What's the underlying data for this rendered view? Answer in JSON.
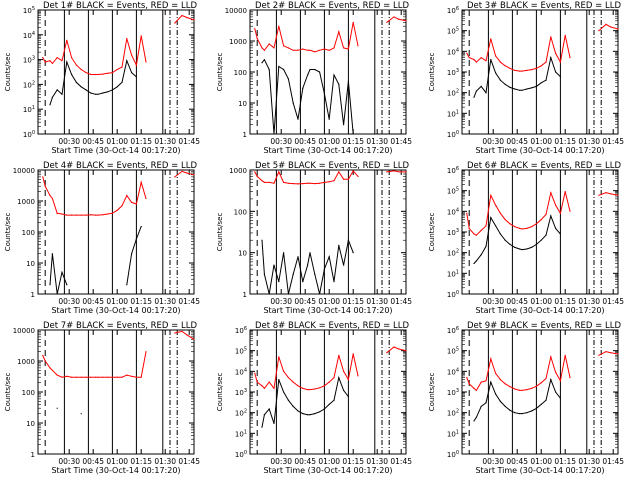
{
  "xlabel": "Start Time (30-Oct-14 00:17:20)",
  "ylabel": "Counts/sec",
  "x_ticks": [
    "00:30",
    "00:45",
    "01:00",
    "01:15",
    "01:30",
    "01:45"
  ],
  "colors": {
    "events": "#000000",
    "lld": "#ff0000"
  },
  "chart_data": [
    {
      "type": "line",
      "title": "Det 1# BLACK = Events, RED = LLD",
      "ylog": true,
      "ylim": [
        1,
        100000
      ],
      "yticks": [
        "10^0",
        "10^1",
        "10^2",
        "10^3",
        "10^4",
        "10^5"
      ],
      "x": [
        0,
        1,
        2,
        3,
        5,
        6,
        8,
        10,
        12,
        14,
        16,
        18,
        20,
        22,
        24,
        25,
        27,
        29,
        31,
        33,
        35,
        37,
        39,
        41,
        43,
        45,
        47,
        49,
        51,
        53,
        55,
        57,
        60,
        62,
        65
      ],
      "series": [
        {
          "name": "Events",
          "values": [
            null,
            null,
            null,
            null,
            15,
            30,
            60,
            40,
            800,
            250,
            120,
            80,
            60,
            45,
            40,
            40,
            45,
            50,
            60,
            80,
            120,
            900,
            300,
            200,
            null,
            null,
            null,
            null,
            null,
            null,
            null,
            null,
            null,
            null,
            null
          ]
        },
        {
          "name": "LLD",
          "values": [
            null,
            null,
            1200,
            800,
            900,
            700,
            1200,
            900,
            6000,
            1200,
            600,
            400,
            300,
            250,
            250,
            250,
            260,
            280,
            300,
            400,
            500,
            7000,
            1500,
            600,
            9000,
            800,
            null,
            null,
            null,
            null,
            null,
            30000,
            60000,
            50000,
            40000
          ]
        }
      ]
    },
    {
      "type": "line",
      "title": "Det 2# BLACK = Events, RED = LLD",
      "ylog": true,
      "ylim": [
        1,
        10000
      ],
      "yticks": [
        "1",
        "10",
        "100",
        "1000",
        "10000"
      ],
      "x": [
        0,
        1,
        2,
        3,
        5,
        6,
        8,
        10,
        12,
        14,
        16,
        18,
        20,
        22,
        24,
        25,
        27,
        29,
        31,
        33,
        35,
        37,
        39,
        41,
        43,
        45,
        47,
        49,
        51,
        53,
        55,
        57,
        60,
        62,
        65
      ],
      "series": [
        {
          "name": "Events",
          "values": [
            null,
            null,
            null,
            null,
            200,
            250,
            120,
            1,
            150,
            120,
            60,
            10,
            3,
            30,
            80,
            120,
            120,
            100,
            20,
            3,
            80,
            40,
            2,
            50,
            1,
            null,
            null,
            null,
            null,
            null,
            null,
            null,
            null,
            null,
            null
          ]
        },
        {
          "name": "LLD",
          "values": [
            null,
            null,
            2500,
            1200,
            600,
            500,
            800,
            600,
            3000,
            700,
            600,
            500,
            500,
            550,
            500,
            500,
            450,
            500,
            550,
            500,
            600,
            2000,
            600,
            550,
            4000,
            700,
            null,
            null,
            null,
            null,
            null,
            4000,
            6000,
            5000,
            4500
          ]
        }
      ]
    },
    {
      "type": "line",
      "title": "Det 3# BLACK = Events, RED = LLD",
      "ylog": true,
      "ylim": [
        1,
        1000000
      ],
      "yticks": [
        "10^0",
        "10^1",
        "10^2",
        "10^3",
        "10^4",
        "10^5",
        "10^6"
      ],
      "x": [
        0,
        1,
        2,
        3,
        5,
        6,
        8,
        10,
        12,
        14,
        16,
        18,
        20,
        22,
        24,
        25,
        27,
        29,
        31,
        33,
        35,
        37,
        39,
        41,
        43,
        45,
        47,
        49,
        51,
        53,
        55,
        57,
        60,
        62,
        65
      ],
      "series": [
        {
          "name": "Events",
          "values": [
            null,
            null,
            null,
            null,
            60,
            120,
            200,
            100,
            4000,
            900,
            400,
            250,
            180,
            150,
            130,
            130,
            150,
            170,
            200,
            300,
            400,
            5000,
            1000,
            600,
            null,
            null,
            null,
            null,
            null,
            null,
            null,
            null,
            null,
            null,
            null
          ]
        },
        {
          "name": "LLD",
          "values": [
            null,
            null,
            8000,
            5000,
            4000,
            3000,
            5000,
            3500,
            40000,
            6000,
            3000,
            2000,
            1500,
            1200,
            1100,
            1100,
            1200,
            1300,
            1500,
            2000,
            3000,
            50000,
            8000,
            3000,
            60000,
            5000,
            null,
            null,
            null,
            null,
            null,
            100000,
            200000,
            150000,
            120000
          ]
        }
      ]
    },
    {
      "type": "line",
      "title": "Det 4# BLACK = Events, RED = LLD",
      "ylog": true,
      "ylim": [
        1,
        10000
      ],
      "yticks": [
        "1",
        "10",
        "100",
        "1000",
        "10000"
      ],
      "x": [
        0,
        1,
        2,
        3,
        5,
        6,
        8,
        10,
        12,
        14,
        16,
        18,
        20,
        22,
        24,
        25,
        27,
        29,
        31,
        33,
        35,
        37,
        39,
        41,
        43,
        45,
        47,
        49,
        51,
        53,
        55,
        57,
        60,
        62,
        65
      ],
      "series": [
        {
          "name": "Events",
          "values": [
            null,
            null,
            null,
            null,
            2,
            20,
            1,
            5,
            2,
            null,
            null,
            null,
            null,
            null,
            null,
            null,
            null,
            null,
            null,
            null,
            null,
            2,
            20,
            60,
            150,
            null,
            null,
            null,
            null,
            null,
            null,
            null,
            null,
            null,
            null
          ]
        },
        {
          "name": "LLD",
          "values": [
            null,
            null,
            6000,
            3000,
            1500,
            1200,
            400,
            380,
            350,
            350,
            350,
            350,
            350,
            360,
            350,
            350,
            360,
            380,
            400,
            500,
            700,
            1500,
            900,
            800,
            4000,
            1200,
            null,
            null,
            null,
            null,
            null,
            6000,
            9000,
            8000,
            7000
          ]
        }
      ]
    },
    {
      "type": "line",
      "title": "Det 5# BLACK = Events, RED = LLD",
      "ylog": true,
      "ylim": [
        1,
        1000
      ],
      "yticks": [
        "1",
        "10",
        "100",
        "1000"
      ],
      "x": [
        0,
        1,
        2,
        3,
        5,
        6,
        8,
        10,
        12,
        14,
        16,
        18,
        20,
        22,
        24,
        25,
        27,
        29,
        31,
        33,
        35,
        37,
        39,
        41,
        43,
        45,
        47,
        49,
        51,
        53,
        55,
        57,
        60,
        62,
        65
      ],
      "series": [
        {
          "name": "Events",
          "values": [
            null,
            null,
            null,
            null,
            20,
            3,
            1,
            5,
            2,
            10,
            1,
            3,
            8,
            2,
            5,
            10,
            3,
            1,
            4,
            8,
            2,
            15,
            5,
            20,
            10,
            null,
            null,
            null,
            null,
            null,
            null,
            null,
            null,
            null,
            null
          ]
        },
        {
          "name": "LLD",
          "values": [
            null,
            null,
            900,
            700,
            550,
            500,
            500,
            480,
            900,
            500,
            480,
            470,
            460,
            470,
            480,
            480,
            470,
            480,
            500,
            520,
            550,
            900,
            600,
            600,
            950,
            700,
            null,
            null,
            null,
            null,
            null,
            900,
            950,
            900,
            900
          ]
        }
      ]
    },
    {
      "type": "line",
      "title": "Det 6# BLACK = Events, RED = LLD",
      "ylog": true,
      "ylim": [
        1,
        1000000
      ],
      "yticks": [
        "10^0",
        "10^1",
        "10^2",
        "10^3",
        "10^4",
        "10^5",
        "10^6"
      ],
      "x": [
        0,
        1,
        2,
        3,
        5,
        6,
        8,
        10,
        12,
        14,
        16,
        18,
        20,
        22,
        24,
        25,
        27,
        29,
        31,
        33,
        35,
        37,
        39,
        41,
        43,
        45,
        47,
        49,
        51,
        53,
        55,
        57,
        60,
        62,
        65
      ],
      "series": [
        {
          "name": "Events",
          "values": [
            null,
            null,
            null,
            null,
            30,
            40,
            80,
            200,
            5000,
            2000,
            800,
            400,
            250,
            180,
            150,
            140,
            150,
            180,
            250,
            400,
            700,
            6000,
            1500,
            800,
            null,
            null,
            null,
            null,
            null,
            null,
            null,
            null,
            null,
            null,
            null
          ]
        },
        {
          "name": "LLD",
          "values": [
            null,
            null,
            8000,
            1500,
            800,
            700,
            1200,
            2000,
            60000,
            20000,
            8000,
            4000,
            2500,
            1800,
            1500,
            1400,
            1500,
            1800,
            2500,
            4000,
            7000,
            80000,
            20000,
            8000,
            90000,
            10000,
            null,
            null,
            null,
            null,
            null,
            60000,
            80000,
            70000,
            60000
          ]
        }
      ]
    },
    {
      "type": "line",
      "title": "Det 7# BLACK = Events, RED = LLD",
      "ylog": true,
      "ylim": [
        1,
        10000
      ],
      "yticks": [
        "1",
        "10",
        "100",
        "1000",
        "10000"
      ],
      "x": [
        0,
        1,
        2,
        3,
        5,
        6,
        8,
        10,
        12,
        14,
        16,
        18,
        20,
        22,
        24,
        25,
        27,
        29,
        31,
        33,
        35,
        37,
        39,
        41,
        43,
        45,
        47,
        49,
        51,
        53,
        55,
        57,
        60,
        62,
        65
      ],
      "series": [
        {
          "name": "Events",
          "values": [
            null,
            null,
            null,
            null,
            null,
            null,
            30,
            null,
            null,
            null,
            null,
            20,
            null,
            null,
            null,
            null,
            null,
            null,
            null,
            null,
            null,
            null,
            null,
            null,
            null,
            null,
            null,
            null,
            null,
            null,
            null,
            null,
            null,
            null,
            null
          ]
        },
        {
          "name": "LLD",
          "values": [
            null,
            null,
            1500,
            1000,
            600,
            500,
            350,
            300,
            320,
            300,
            300,
            300,
            300,
            300,
            300,
            300,
            300,
            300,
            300,
            300,
            300,
            350,
            320,
            300,
            300,
            2000,
            null,
            null,
            null,
            null,
            null,
            8000,
            9000,
            7000,
            5000
          ]
        }
      ]
    },
    {
      "type": "line",
      "title": "Det 8# BLACK = Events, RED = LLD",
      "ylog": true,
      "ylim": [
        1,
        1000000
      ],
      "yticks": [
        "10^0",
        "10^1",
        "10^2",
        "10^3",
        "10^4",
        "10^5",
        "10^6"
      ],
      "x": [
        0,
        1,
        2,
        3,
        5,
        6,
        8,
        10,
        12,
        14,
        16,
        18,
        20,
        22,
        24,
        25,
        27,
        29,
        31,
        33,
        35,
        37,
        39,
        41,
        43,
        45,
        47,
        49,
        51,
        53,
        55,
        57,
        60,
        62,
        65
      ],
      "series": [
        {
          "name": "Events",
          "values": [
            null,
            null,
            null,
            null,
            20,
            80,
            150,
            30,
            4000,
            1000,
            400,
            200,
            120,
            90,
            80,
            80,
            90,
            110,
            150,
            250,
            400,
            5000,
            1200,
            600,
            null,
            null,
            null,
            null,
            null,
            null,
            null,
            null,
            null,
            null,
            null
          ]
        },
        {
          "name": "LLD",
          "values": [
            null,
            null,
            8000,
            3000,
            2000,
            1500,
            3000,
            1500,
            50000,
            10000,
            5000,
            3000,
            2000,
            1500,
            1300,
            1300,
            1400,
            1600,
            2000,
            3000,
            5000,
            60000,
            10000,
            4000,
            70000,
            6000,
            null,
            null,
            null,
            null,
            null,
            80000,
            150000,
            120000,
            100000
          ]
        }
      ]
    },
    {
      "type": "line",
      "title": "Det 9# BLACK = Events, RED = LLD",
      "ylog": true,
      "ylim": [
        1,
        1000000
      ],
      "yticks": [
        "10^0",
        "10^1",
        "10^2",
        "10^3",
        "10^4",
        "10^5",
        "10^6"
      ],
      "x": [
        0,
        1,
        2,
        3,
        5,
        6,
        8,
        10,
        12,
        14,
        16,
        18,
        20,
        22,
        24,
        25,
        27,
        29,
        31,
        33,
        35,
        37,
        39,
        41,
        43,
        45,
        47,
        49,
        51,
        53,
        55,
        57,
        60,
        62,
        65
      ],
      "series": [
        {
          "name": "Events",
          "values": [
            null,
            null,
            null,
            null,
            40,
            60,
            200,
            300,
            3000,
            800,
            350,
            200,
            130,
            100,
            90,
            90,
            100,
            120,
            160,
            250,
            400,
            4000,
            1000,
            500,
            null,
            null,
            null,
            null,
            null,
            null,
            null,
            null,
            null,
            null,
            null
          ]
        },
        {
          "name": "LLD",
          "values": [
            null,
            null,
            5000,
            2500,
            1500,
            1200,
            3000,
            3500,
            40000,
            8000,
            4000,
            2500,
            1800,
            1400,
            1200,
            1200,
            1300,
            1500,
            1900,
            2800,
            4500,
            50000,
            9000,
            3500,
            60000,
            5000,
            null,
            null,
            null,
            null,
            null,
            60000,
            90000,
            80000,
            70000
          ]
        }
      ]
    }
  ]
}
